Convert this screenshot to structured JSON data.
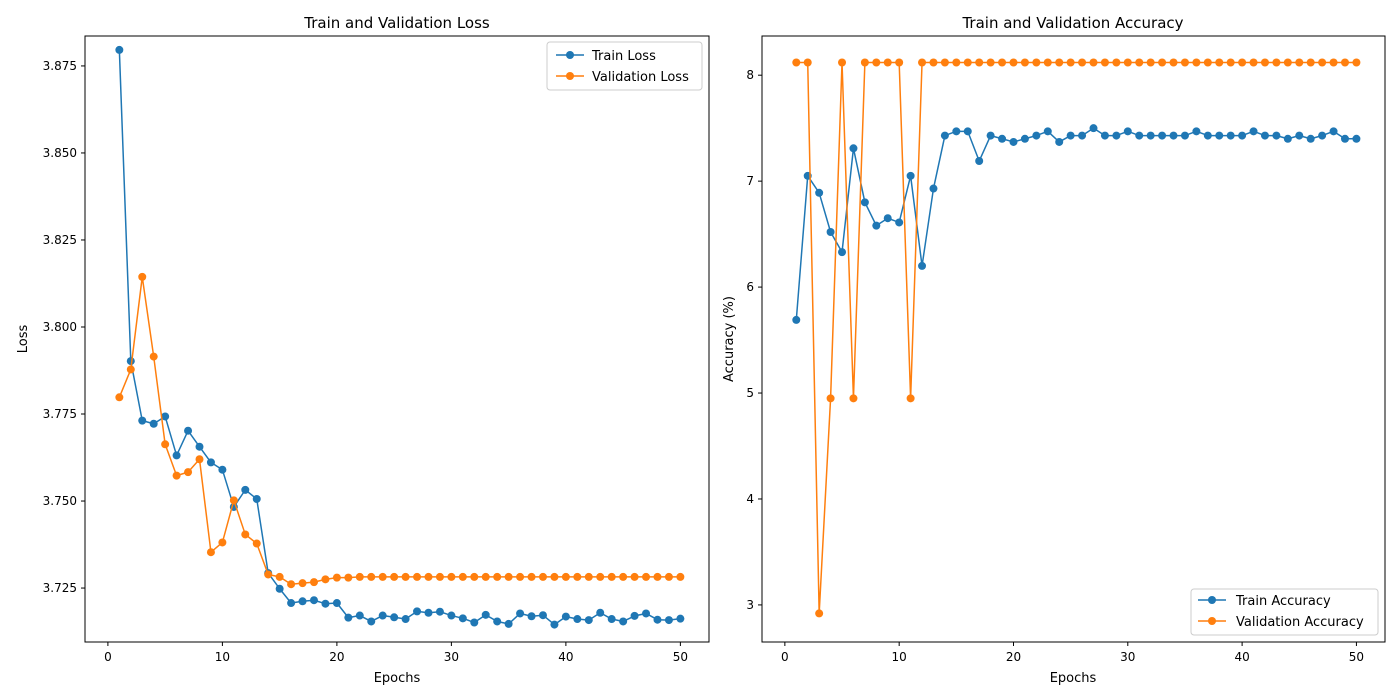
{
  "colors": {
    "train": "#1f77b4",
    "validation": "#ff7f0e"
  },
  "chart_data": [
    {
      "type": "line",
      "title": "Train and Validation Loss",
      "xlabel": "Epochs",
      "ylabel": "Loss",
      "xlim": [
        -2,
        52.5
      ],
      "ylim": [
        3.7095,
        3.8836
      ],
      "xticks": [
        0,
        10,
        20,
        30,
        40,
        50
      ],
      "yticks": [
        3.725,
        3.75,
        3.775,
        3.8,
        3.825,
        3.85,
        3.875
      ],
      "ytick_labels": [
        "3.725",
        "3.750",
        "3.775",
        "3.800",
        "3.825",
        "3.850",
        "3.875"
      ],
      "grid": false,
      "legend_position": "top-right",
      "x": [
        1,
        2,
        3,
        4,
        5,
        6,
        7,
        8,
        9,
        10,
        11,
        12,
        13,
        14,
        15,
        16,
        17,
        18,
        19,
        20,
        21,
        22,
        23,
        24,
        25,
        26,
        27,
        28,
        29,
        30,
        31,
        32,
        33,
        34,
        35,
        36,
        37,
        38,
        39,
        40,
        41,
        42,
        43,
        44,
        45,
        46,
        47,
        48,
        49,
        50
      ],
      "series": [
        {
          "name": "Train Loss",
          "color": "#1f77b4",
          "values": [
            3.8796,
            3.7902,
            3.7731,
            3.7722,
            3.7743,
            3.7631,
            3.7702,
            3.7656,
            3.7611,
            3.759,
            3.7483,
            3.7532,
            3.7506,
            3.7293,
            3.7248,
            3.7207,
            3.7212,
            3.7215,
            3.7205,
            3.7207,
            3.7165,
            3.7171,
            3.7154,
            3.7171,
            3.7166,
            3.7161,
            3.7183,
            3.7179,
            3.7182,
            3.7171,
            3.7163,
            3.7151,
            3.7173,
            3.7154,
            3.7147,
            3.7177,
            3.7169,
            3.7172,
            3.7145,
            3.7168,
            3.7161,
            3.7158,
            3.7179,
            3.7161,
            3.7154,
            3.717,
            3.7177,
            3.7159,
            3.7158,
            3.7162
          ]
        },
        {
          "name": "Validation Loss",
          "color": "#ff7f0e",
          "values": [
            3.7798,
            3.7878,
            3.8144,
            3.7915,
            3.7663,
            3.7573,
            3.7583,
            3.762,
            3.7353,
            3.7381,
            3.7502,
            3.7404,
            3.7378,
            3.7289,
            3.7282,
            3.7261,
            3.7264,
            3.7267,
            3.7275,
            3.728,
            3.728,
            3.7282,
            3.7282,
            3.7282,
            3.7282,
            3.7282,
            3.7282,
            3.7282,
            3.7282,
            3.7282,
            3.7282,
            3.7282,
            3.7282,
            3.7282,
            3.7282,
            3.7282,
            3.7282,
            3.7282,
            3.7282,
            3.7282,
            3.7282,
            3.7282,
            3.7282,
            3.7282,
            3.7282,
            3.7282,
            3.7282,
            3.7282,
            3.7282,
            3.7282
          ]
        }
      ]
    },
    {
      "type": "line",
      "title": "Train and Validation Accuracy",
      "xlabel": "Epochs",
      "ylabel": "Accuracy (%)",
      "xlim": [
        -2,
        52.5
      ],
      "ylim": [
        2.65,
        8.37
      ],
      "xticks": [
        0,
        10,
        20,
        30,
        40,
        50
      ],
      "yticks": [
        3,
        4,
        5,
        6,
        7,
        8
      ],
      "ytick_labels": [
        "3",
        "4",
        "5",
        "6",
        "7",
        "8"
      ],
      "grid": false,
      "legend_position": "bottom-right",
      "x": [
        1,
        2,
        3,
        4,
        5,
        6,
        7,
        8,
        9,
        10,
        11,
        12,
        13,
        14,
        15,
        16,
        17,
        18,
        19,
        20,
        21,
        22,
        23,
        24,
        25,
        26,
        27,
        28,
        29,
        30,
        31,
        32,
        33,
        34,
        35,
        36,
        37,
        38,
        39,
        40,
        41,
        42,
        43,
        44,
        45,
        46,
        47,
        48,
        49,
        50
      ],
      "series": [
        {
          "name": "Train Accuracy",
          "color": "#1f77b4",
          "values": [
            5.69,
            7.05,
            6.89,
            6.52,
            6.33,
            7.31,
            6.8,
            6.58,
            6.65,
            6.61,
            7.05,
            6.2,
            6.93,
            7.43,
            7.47,
            7.47,
            7.19,
            7.43,
            7.4,
            7.37,
            7.4,
            7.43,
            7.47,
            7.37,
            7.43,
            7.43,
            7.5,
            7.43,
            7.43,
            7.47,
            7.43,
            7.43,
            7.43,
            7.43,
            7.43,
            7.47,
            7.43,
            7.43,
            7.43,
            7.43,
            7.47,
            7.43,
            7.43,
            7.4,
            7.43,
            7.4,
            7.43,
            7.47,
            7.4,
            7.4
          ]
        },
        {
          "name": "Validation Accuracy",
          "color": "#ff7f0e",
          "values": [
            8.12,
            8.12,
            2.92,
            4.95,
            8.12,
            4.95,
            8.12,
            8.12,
            8.12,
            8.12,
            4.95,
            8.12,
            8.12,
            8.12,
            8.12,
            8.12,
            8.12,
            8.12,
            8.12,
            8.12,
            8.12,
            8.12,
            8.12,
            8.12,
            8.12,
            8.12,
            8.12,
            8.12,
            8.12,
            8.12,
            8.12,
            8.12,
            8.12,
            8.12,
            8.12,
            8.12,
            8.12,
            8.12,
            8.12,
            8.12,
            8.12,
            8.12,
            8.12,
            8.12,
            8.12,
            8.12,
            8.12,
            8.12,
            8.12,
            8.12
          ]
        }
      ]
    }
  ]
}
